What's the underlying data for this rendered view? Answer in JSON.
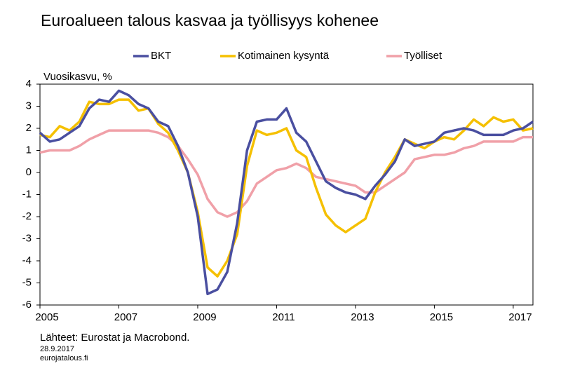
{
  "chart_data": {
    "type": "line",
    "title": "Euroalueen talous kasvaa ja työllisyys kohenee",
    "y_label": "Vuosikasvu, %",
    "source": "Lähteet: Eurostat ja Macrobond.",
    "date": "28.9.2017",
    "site": "eurojatalous.fi",
    "legend": "top",
    "grid": false,
    "xlim": [
      2005,
      2017.5
    ],
    "xticks": [
      2005,
      2007,
      2009,
      2011,
      2013,
      2015,
      2017
    ],
    "ylim": [
      -6,
      4
    ],
    "yticks": [
      -6,
      -5,
      -4,
      -3,
      -2,
      -1,
      0,
      1,
      2,
      3,
      4
    ],
    "x": [
      2005,
      2005.25,
      2005.5,
      2005.75,
      2006,
      2006.25,
      2006.5,
      2006.75,
      2007,
      2007.25,
      2007.5,
      2007.75,
      2008,
      2008.25,
      2008.5,
      2008.75,
      2009,
      2009.25,
      2009.5,
      2009.75,
      2010,
      2010.25,
      2010.5,
      2010.75,
      2011,
      2011.25,
      2011.5,
      2011.75,
      2012,
      2012.25,
      2012.5,
      2012.75,
      2013,
      2013.25,
      2013.5,
      2013.75,
      2014,
      2014.25,
      2014.5,
      2014.75,
      2015,
      2015.25,
      2015.5,
      2015.75,
      2016,
      2016.25,
      2016.5,
      2016.75,
      2017,
      2017.25,
      2017.5
    ],
    "series": [
      {
        "name": "BKT",
        "color": "#4a4fa0",
        "values": [
          1.8,
          1.4,
          1.5,
          1.8,
          2.1,
          2.9,
          3.3,
          3.2,
          3.7,
          3.5,
          3.1,
          2.9,
          2.3,
          2.1,
          1.2,
          0.0,
          -2.0,
          -5.5,
          -5.3,
          -4.5,
          -2.3,
          1.0,
          2.3,
          2.4,
          2.4,
          2.9,
          1.8,
          1.4,
          0.5,
          -0.4,
          -0.7,
          -0.9,
          -1.0,
          -1.2,
          -0.6,
          -0.1,
          0.5,
          1.5,
          1.2,
          1.3,
          1.4,
          1.8,
          1.9,
          2.0,
          1.9,
          1.7,
          1.7,
          1.7,
          1.9,
          2.0,
          2.3
        ]
      },
      {
        "name": "Kotimainen kysyntä",
        "color": "#f5c000",
        "values": [
          1.7,
          1.6,
          2.1,
          1.9,
          2.3,
          3.2,
          3.1,
          3.1,
          3.3,
          3.3,
          2.8,
          2.9,
          2.2,
          1.8,
          1.0,
          0.0,
          -1.8,
          -4.3,
          -4.7,
          -4.0,
          -2.8,
          0.3,
          1.9,
          1.7,
          1.8,
          2.0,
          1.0,
          0.7,
          -0.7,
          -1.9,
          -2.4,
          -2.7,
          -2.4,
          -2.1,
          -0.9,
          0.0,
          0.7,
          1.5,
          1.3,
          1.1,
          1.4,
          1.6,
          1.5,
          1.9,
          2.4,
          2.1,
          2.5,
          2.3,
          2.4,
          1.9,
          2.0
        ]
      },
      {
        "name": "Työlliset",
        "color": "#f0a0a8",
        "values": [
          0.9,
          1.0,
          1.0,
          1.0,
          1.2,
          1.5,
          1.7,
          1.9,
          1.9,
          1.9,
          1.9,
          1.9,
          1.8,
          1.6,
          1.2,
          0.6,
          -0.1,
          -1.2,
          -1.8,
          -2.0,
          -1.8,
          -1.3,
          -0.5,
          -0.2,
          0.1,
          0.2,
          0.4,
          0.2,
          -0.2,
          -0.3,
          -0.4,
          -0.5,
          -0.6,
          -0.9,
          -0.9,
          -0.6,
          -0.3,
          0.0,
          0.6,
          0.7,
          0.8,
          0.8,
          0.9,
          1.1,
          1.2,
          1.4,
          1.4,
          1.4,
          1.4,
          1.6,
          1.6
        ]
      }
    ]
  }
}
